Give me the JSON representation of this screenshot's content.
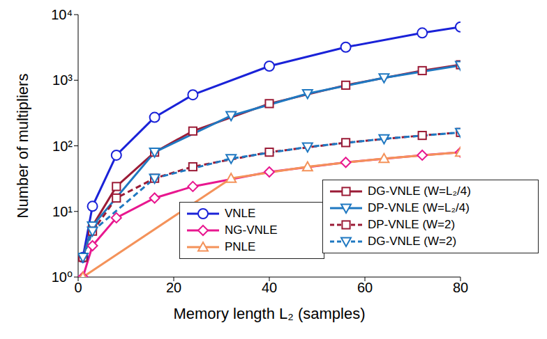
{
  "chart_data": {
    "type": "line",
    "x_label": "Memory length L₂ (samples)",
    "y_label": "Number of multipliers",
    "log": "y",
    "grid": false,
    "legend": "lower right",
    "xlim": [
      0,
      80
    ],
    "xticks": [
      0,
      20,
      40,
      60,
      80
    ],
    "ylim": [
      1,
      10000
    ],
    "yticks": [
      {
        "value": 1,
        "label": "10⁰"
      },
      {
        "value": 10,
        "label": "10¹"
      },
      {
        "value": 100,
        "label": "10²"
      },
      {
        "value": 1000,
        "label": "10³"
      },
      {
        "value": 10000,
        "label": "10⁴"
      }
    ],
    "series": [
      {
        "name": "VNLE",
        "color": "#1a22d8",
        "marker": "circle",
        "line_style": "solid",
        "x": [
          1,
          3,
          8,
          16,
          24,
          40,
          56,
          72,
          80
        ],
        "values": [
          2,
          12,
          72,
          272,
          600,
          1640,
          3192,
          5256,
          6480
        ]
      },
      {
        "name": "NG-VNLE",
        "color": "#e8178f",
        "marker": "diamond",
        "line_style": "solid",
        "x": [
          1,
          3,
          8,
          16,
          24,
          40,
          56,
          72,
          80
        ],
        "values": [
          1,
          3,
          8,
          16,
          24,
          40,
          56,
          72,
          80
        ]
      },
      {
        "name": "PNLE",
        "color": "#f4925a",
        "marker": "triangle",
        "line_style": "solid",
        "x": [
          1,
          32,
          48,
          64,
          80
        ],
        "values": [
          1,
          32,
          48,
          64,
          80
        ]
      },
      {
        "name": "DG-VNLE (W=L₂/4)",
        "color": "#9b1b36",
        "marker": "square",
        "line_style": "solid",
        "x": [
          1,
          3,
          8,
          16,
          24,
          40,
          56,
          72,
          80
        ],
        "values": [
          2,
          6,
          24,
          80,
          168,
          440,
          840,
          1400,
          1720
        ]
      },
      {
        "name": "DP-VNLE (W=L₂/4)",
        "color": "#1f78c1",
        "marker": "triangle-down",
        "line_style": "solid",
        "x": [
          1,
          3,
          16,
          32,
          48,
          64,
          80
        ],
        "values": [
          2,
          6,
          80,
          288,
          624,
          1088,
          1680
        ]
      },
      {
        "name": "DP-VNLE (W=2)",
        "color": "#9b1b36",
        "marker": "square",
        "line_style": "dashed",
        "x": [
          1,
          3,
          8,
          16,
          24,
          40,
          56,
          72,
          80
        ],
        "values": [
          2,
          5,
          16,
          32,
          48,
          80,
          112,
          144,
          160
        ]
      },
      {
        "name": "DG-VNLE (W=2)",
        "color": "#1f78c1",
        "marker": "triangle-down",
        "line_style": "dashed",
        "x": [
          1,
          3,
          16,
          32,
          48,
          64,
          80
        ],
        "values": [
          2,
          5,
          32,
          64,
          96,
          128,
          160
        ]
      }
    ]
  }
}
